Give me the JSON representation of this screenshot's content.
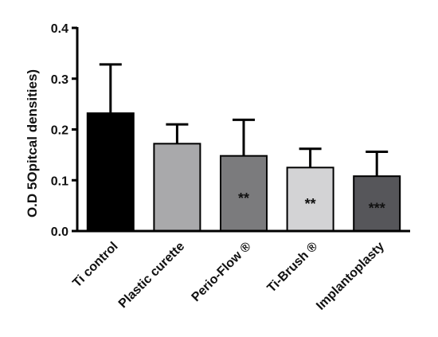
{
  "chart_data": {
    "type": "bar",
    "title": "",
    "xlabel": "",
    "ylabel": "O.D 5Opitcal densities)",
    "ylim": [
      0,
      0.4
    ],
    "yticks": [
      0.0,
      0.1,
      0.2,
      0.3,
      0.4
    ],
    "ytick_labels": [
      "0.0",
      "0.1",
      "0.2",
      "0.3",
      "0.4"
    ],
    "categories": [
      "Ti  control",
      "Plastic curette",
      "Perio-Flow ®",
      "Ti-Brush ®",
      "Implantoplasty"
    ],
    "values": [
      0.232,
      0.172,
      0.148,
      0.125,
      0.108
    ],
    "error_upper": [
      0.328,
      0.21,
      0.219,
      0.162,
      0.156
    ],
    "significance": [
      "",
      "",
      "**",
      "**",
      "***"
    ],
    "bar_colors": [
      "#000000",
      "#a9a9ab",
      "#7b7b7d",
      "#d3d3d5",
      "#56565a"
    ],
    "grid": false,
    "legend": "none"
  }
}
